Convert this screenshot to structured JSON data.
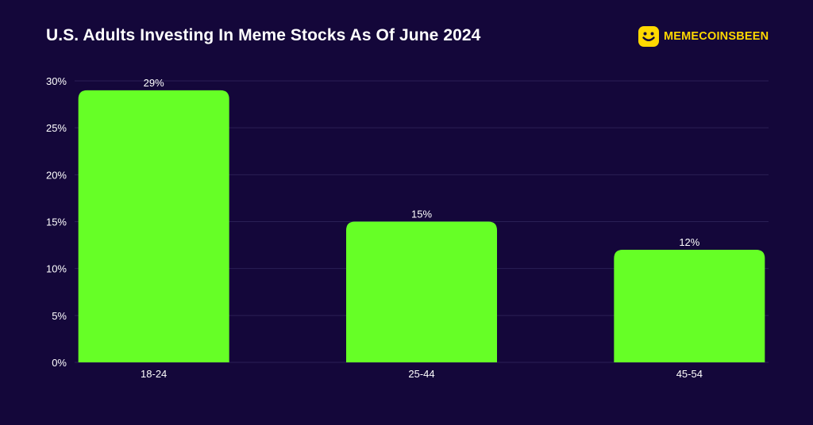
{
  "header": {
    "title": "U.S. Adults Investing In Meme Stocks As Of June 2024",
    "brand": "MEMECOINSBEEN",
    "brand_icon": "smiley-face-icon"
  },
  "colors": {
    "background": "#14073a",
    "bar": "#66ff26",
    "grid": "#2a1f55",
    "brand": "#ffd800"
  },
  "chart_data": {
    "type": "bar",
    "title": "U.S. Adults Investing In Meme Stocks As Of June 2024",
    "categories": [
      "18-24",
      "25-44",
      "45-54"
    ],
    "values": [
      29,
      15,
      12
    ],
    "value_labels": [
      "29%",
      "15%",
      "12%"
    ],
    "xlabel": "",
    "ylabel": "",
    "ylim": [
      0,
      30
    ],
    "yticks": [
      0,
      5,
      10,
      15,
      20,
      25,
      30
    ],
    "ytick_labels": [
      "0%",
      "5%",
      "10%",
      "15%",
      "20%",
      "25%",
      "30%"
    ],
    "grid": true
  }
}
